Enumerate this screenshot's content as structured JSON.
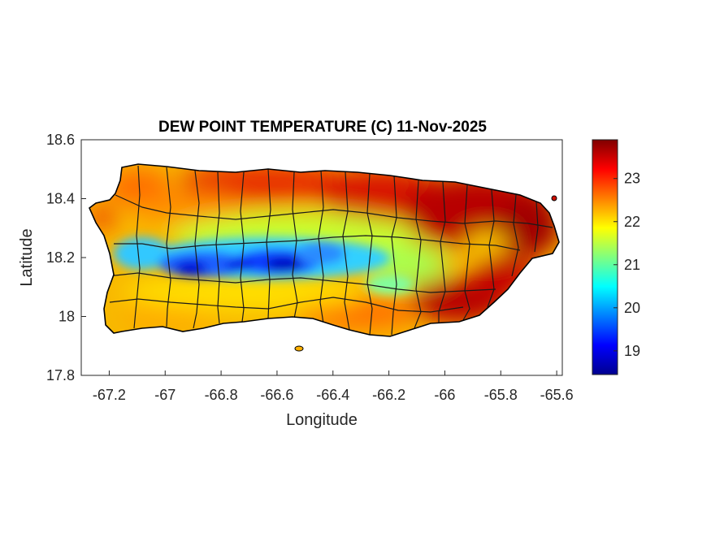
{
  "map": {
    "title": "DEW POINT TEMPERATURE (C) 11-Nov-2025",
    "xlabel": "Longitude",
    "ylabel": "Latitude",
    "xlim": [
      -67.3,
      -65.58
    ],
    "ylim": [
      17.8,
      18.6
    ],
    "xticks": [
      {
        "value": -67.2,
        "label": "-67.2"
      },
      {
        "value": -67.0,
        "label": "-67"
      },
      {
        "value": -66.8,
        "label": "-66.8"
      },
      {
        "value": -66.6,
        "label": "-66.6"
      },
      {
        "value": -66.4,
        "label": "-66.4"
      },
      {
        "value": -66.2,
        "label": "-66.2"
      },
      {
        "value": -66.0,
        "label": "-66"
      },
      {
        "value": -65.8,
        "label": "-65.8"
      },
      {
        "value": -65.6,
        "label": "-65.6"
      }
    ],
    "yticks": [
      {
        "value": 17.8,
        "label": "17.8"
      },
      {
        "value": 18.0,
        "label": "18"
      },
      {
        "value": 18.2,
        "label": "18.2"
      },
      {
        "value": 18.4,
        "label": "18.4"
      },
      {
        "value": 18.6,
        "label": "18.6"
      }
    ]
  },
  "colorbar": {
    "range": [
      18.45,
      23.9
    ],
    "ticks": [
      {
        "value": 19,
        "label": "19"
      },
      {
        "value": 20,
        "label": "20"
      },
      {
        "value": 21,
        "label": "21"
      },
      {
        "value": 22,
        "label": "22"
      },
      {
        "value": 23,
        "label": "23"
      }
    ],
    "colormap": [
      "#00008f",
      "#0000ff",
      "#00ffff",
      "#ffff00",
      "#ff0000",
      "#800000"
    ]
  }
}
